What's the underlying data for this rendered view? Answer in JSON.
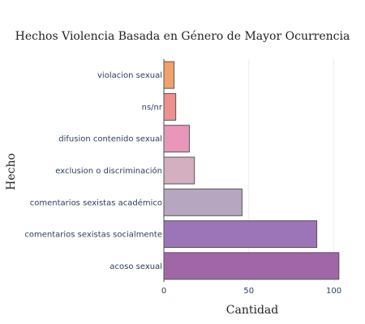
{
  "chart_data": {
    "type": "bar",
    "orientation": "horizontal",
    "title": "Hechos Violencia Basada en Género de Mayor Ocurrencia",
    "xlabel": "Cantidad",
    "ylabel": "Hecho",
    "xlim": [
      0,
      105
    ],
    "xticks": [
      0,
      50,
      100
    ],
    "grid": true,
    "categories": [
      "acoso sexual",
      "comentarios sexistas socialmente",
      "comentarios sexistas académico",
      "exclusion o discriminación",
      "difusion contenido sexual",
      "ns/nr",
      "violacion sexual"
    ],
    "values": [
      103,
      90,
      46,
      18,
      15,
      7,
      6
    ],
    "colors": [
      "#a066a8",
      "#9c75b8",
      "#b7a6bf",
      "#d3afbf",
      "#e996ba",
      "#ed9090",
      "#f2a06c"
    ]
  }
}
